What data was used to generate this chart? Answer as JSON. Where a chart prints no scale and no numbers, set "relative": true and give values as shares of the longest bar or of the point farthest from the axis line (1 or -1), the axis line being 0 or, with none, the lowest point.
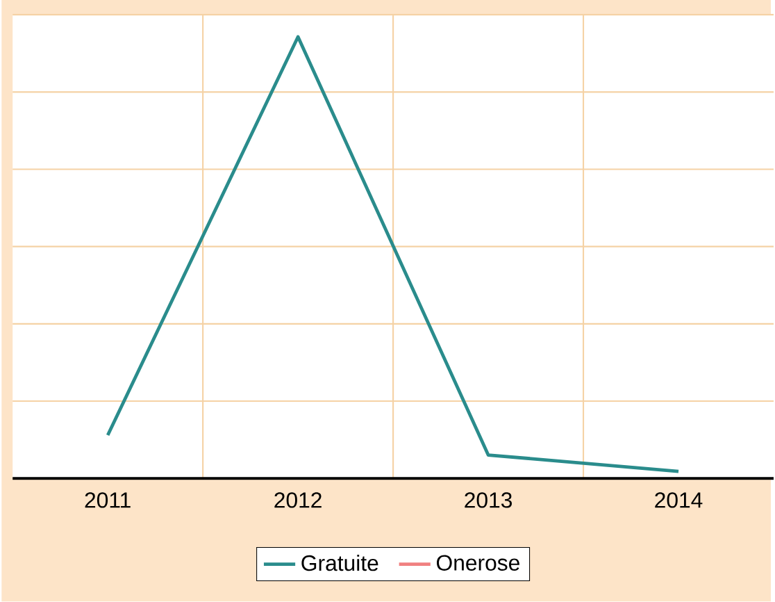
{
  "chart_data": {
    "type": "line",
    "relative": true,
    "categories": [
      "2011",
      "2012",
      "2013",
      "2014"
    ],
    "series": [
      {
        "name": "Gratuite",
        "color": "#2a8c8c",
        "values": [
          0.098,
          1,
          0.053,
          0.016
        ]
      },
      {
        "name": "Onerose",
        "color": "#f08080",
        "values": [
          null,
          null,
          null,
          null
        ]
      }
    ],
    "grid": true,
    "legend": "bottom",
    "line_style": "solid"
  }
}
